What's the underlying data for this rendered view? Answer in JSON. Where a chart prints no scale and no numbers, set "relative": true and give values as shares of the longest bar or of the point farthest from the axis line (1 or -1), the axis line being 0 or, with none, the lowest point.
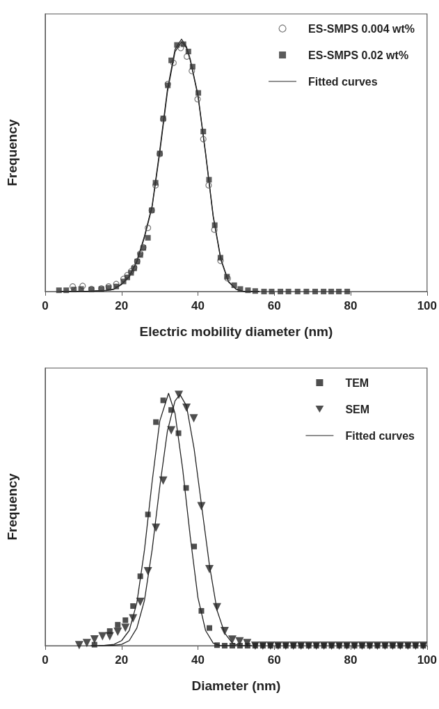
{
  "chart_data": [
    {
      "type": "scatter",
      "xlabel": "Electric mobility diameter (nm)",
      "ylabel": "Frequency",
      "relative": true,
      "xlim": [
        0,
        100
      ],
      "xticks": [
        0,
        20,
        40,
        60,
        80,
        100
      ],
      "grid": false,
      "legend": "top right",
      "series": [
        {
          "name": "ES-SMPS 0.004 wt%",
          "color": "#555555",
          "marker": "circle",
          "x": [
            7.2,
            9.8,
            12.1,
            14.7,
            16.6,
            18.6,
            20.5,
            21.5,
            22.5,
            23.3,
            24.1,
            24.9,
            25.7,
            26.9,
            27.9,
            28.9,
            30.0,
            30.9,
            32.1,
            33.6,
            35.5,
            37.1,
            38.4,
            39.9,
            41.4,
            42.8,
            44.3,
            45.9,
            47.8
          ],
          "values": [
            0.02,
            0.022,
            0.01,
            0.012,
            0.02,
            0.03,
            0.05,
            0.065,
            0.08,
            0.095,
            0.12,
            0.15,
            0.175,
            0.252,
            0.322,
            0.421,
            0.545,
            0.683,
            0.822,
            0.906,
            0.965,
            0.931,
            0.874,
            0.762,
            0.604,
            0.421,
            0.245,
            0.122,
            0.052
          ]
        },
        {
          "name": "ES-SMPS 0.02 wt%",
          "color": "#333333",
          "marker": "square",
          "x": [
            3.6,
            5.5,
            7.5,
            9.4,
            12.1,
            14.7,
            16.6,
            18.6,
            20.5,
            21.5,
            22.5,
            23.3,
            24.1,
            24.9,
            25.7,
            26.9,
            27.9,
            28.9,
            30.0,
            30.9,
            32.1,
            33.0,
            34.5,
            36.2,
            37.5,
            38.6,
            40.1,
            41.4,
            42.9,
            44.4,
            45.9,
            47.6,
            49.5,
            51.1,
            53.1,
            55.0,
            57.3,
            59.3,
            61.6,
            63.7,
            66.1,
            68.4,
            70.7,
            72.9,
            74.9,
            76.9,
            79.1
          ],
          "values": [
            0.005,
            0.005,
            0.008,
            0.01,
            0.008,
            0.01,
            0.015,
            0.02,
            0.04,
            0.056,
            0.074,
            0.092,
            0.119,
            0.145,
            0.173,
            0.213,
            0.322,
            0.431,
            0.547,
            0.686,
            0.817,
            0.916,
            0.977,
            0.98,
            0.951,
            0.891,
            0.787,
            0.634,
            0.443,
            0.263,
            0.134,
            0.059,
            0.025,
            0.01,
            0.005,
            0.002,
            0,
            0,
            0,
            0,
            0,
            0,
            0,
            0,
            0,
            0,
            0
          ]
        },
        {
          "name": "Fitted curves",
          "type": "line",
          "color": "#222222",
          "marker": "none",
          "x": [
            4,
            10,
            16,
            18,
            20,
            22,
            24,
            26,
            28,
            30,
            32,
            34,
            35.7,
            37,
            38,
            40,
            42,
            44,
            46,
            48,
            50,
            52,
            56
          ],
          "values": [
            0,
            0,
            0.005,
            0.01,
            0.03,
            0.06,
            0.12,
            0.22,
            0.34,
            0.56,
            0.8,
            0.96,
            1,
            0.97,
            0.92,
            0.78,
            0.55,
            0.3,
            0.13,
            0.04,
            0.01,
            0,
            0
          ]
        },
        {
          "type": "line",
          "color": "#222222",
          "marker": "none",
          "x": [
            4,
            10,
            16,
            18,
            20,
            22,
            24,
            26,
            28,
            30,
            32,
            34,
            35.7,
            37,
            38,
            40,
            42,
            44,
            46,
            48,
            50,
            52,
            56
          ],
          "values": [
            0,
            0,
            0.004,
            0.009,
            0.028,
            0.058,
            0.118,
            0.215,
            0.335,
            0.55,
            0.79,
            0.95,
            0.99,
            0.965,
            0.915,
            0.775,
            0.545,
            0.295,
            0.125,
            0.038,
            0.009,
            0,
            0
          ]
        }
      ]
    },
    {
      "type": "scatter",
      "xlabel": "Diameter (nm)",
      "ylabel": "Frequency",
      "relative": true,
      "xlim": [
        0,
        100
      ],
      "xticks": [
        0,
        20,
        40,
        60,
        80,
        100
      ],
      "grid": false,
      "legend": "top right",
      "series": [
        {
          "name": "TEM",
          "color": "#222222",
          "marker": "square",
          "x": [
            12.9,
            15.0,
            16.9,
            19.0,
            21.0,
            23.0,
            24.9,
            26.9,
            29.0,
            30.9,
            33.0,
            34.9,
            36.9,
            39.0,
            40.9,
            43.0,
            45.0,
            47,
            49,
            51,
            53,
            55,
            57,
            59,
            61,
            63,
            65,
            67,
            69,
            71,
            73,
            75,
            77,
            79,
            81,
            83,
            85,
            87,
            89,
            91,
            93,
            95,
            97,
            99
          ],
          "values": [
            0.004,
            null,
            0.058,
            0.083,
            0.101,
            0.157,
            0.275,
            0.52,
            0.886,
            0.972,
            0.934,
            0.842,
            0.625,
            0.393,
            0.138,
            0.07,
            0.002,
            0,
            0,
            0,
            0,
            0,
            0,
            0,
            0,
            0,
            0,
            0,
            0,
            0,
            0,
            0,
            0,
            0,
            0,
            0,
            0,
            0,
            0,
            0,
            0,
            0,
            0,
            0
          ]
        },
        {
          "name": "SEM",
          "color": "#222222",
          "marker": "triangle",
          "x": [
            8.9,
            10.9,
            12.9,
            15.0,
            16.9,
            19.0,
            21.0,
            23.0,
            24.9,
            26.9,
            29.0,
            30.9,
            33.0,
            35.0,
            37.0,
            38.9,
            40.9,
            43.0,
            45.0,
            47.0,
            49.0,
            50.9,
            52.9,
            55,
            57,
            59,
            61,
            63,
            65,
            67,
            69,
            71,
            73,
            75,
            77,
            79,
            81,
            83,
            85,
            87,
            89,
            91,
            93,
            95,
            97,
            99
          ],
          "values": [
            0.002,
            0.01,
            0.025,
            0.037,
            0.037,
            0.055,
            0.071,
            0.108,
            0.174,
            0.295,
            0.467,
            0.654,
            0.853,
            0.994,
            0.943,
            0.901,
            0.553,
            0.303,
            0.152,
            0.058,
            0.024,
            0.017,
            0.01,
            0,
            0,
            0,
            0,
            0,
            0,
            0,
            0,
            0,
            0,
            0,
            0,
            0,
            0,
            0,
            0,
            0,
            0,
            0,
            0,
            0,
            0,
            0
          ]
        },
        {
          "name": "Fitted curves",
          "type": "line",
          "color": "#222222",
          "marker": "none",
          "x": [
            12,
            15,
            18,
            20,
            22,
            24,
            26,
            28,
            30,
            32.3,
            34,
            36,
            38,
            40,
            42,
            44,
            46,
            50
          ],
          "values": [
            0,
            0,
            0.005,
            0.02,
            0.06,
            0.17,
            0.38,
            0.65,
            0.89,
            1,
            0.92,
            0.7,
            0.43,
            0.19,
            0.06,
            0.01,
            0,
            0
          ]
        },
        {
          "type": "line",
          "color": "#222222",
          "marker": "none",
          "x": [
            14,
            18,
            20,
            22,
            24,
            26,
            28,
            30,
            32,
            34,
            35.3,
            37,
            39,
            41,
            43,
            45,
            47,
            49,
            51,
            54
          ],
          "values": [
            0,
            0.002,
            0.005,
            0.02,
            0.07,
            0.18,
            0.38,
            0.63,
            0.85,
            0.97,
            0.995,
            0.95,
            0.78,
            0.55,
            0.32,
            0.14,
            0.05,
            0.01,
            0,
            0
          ]
        }
      ]
    }
  ]
}
